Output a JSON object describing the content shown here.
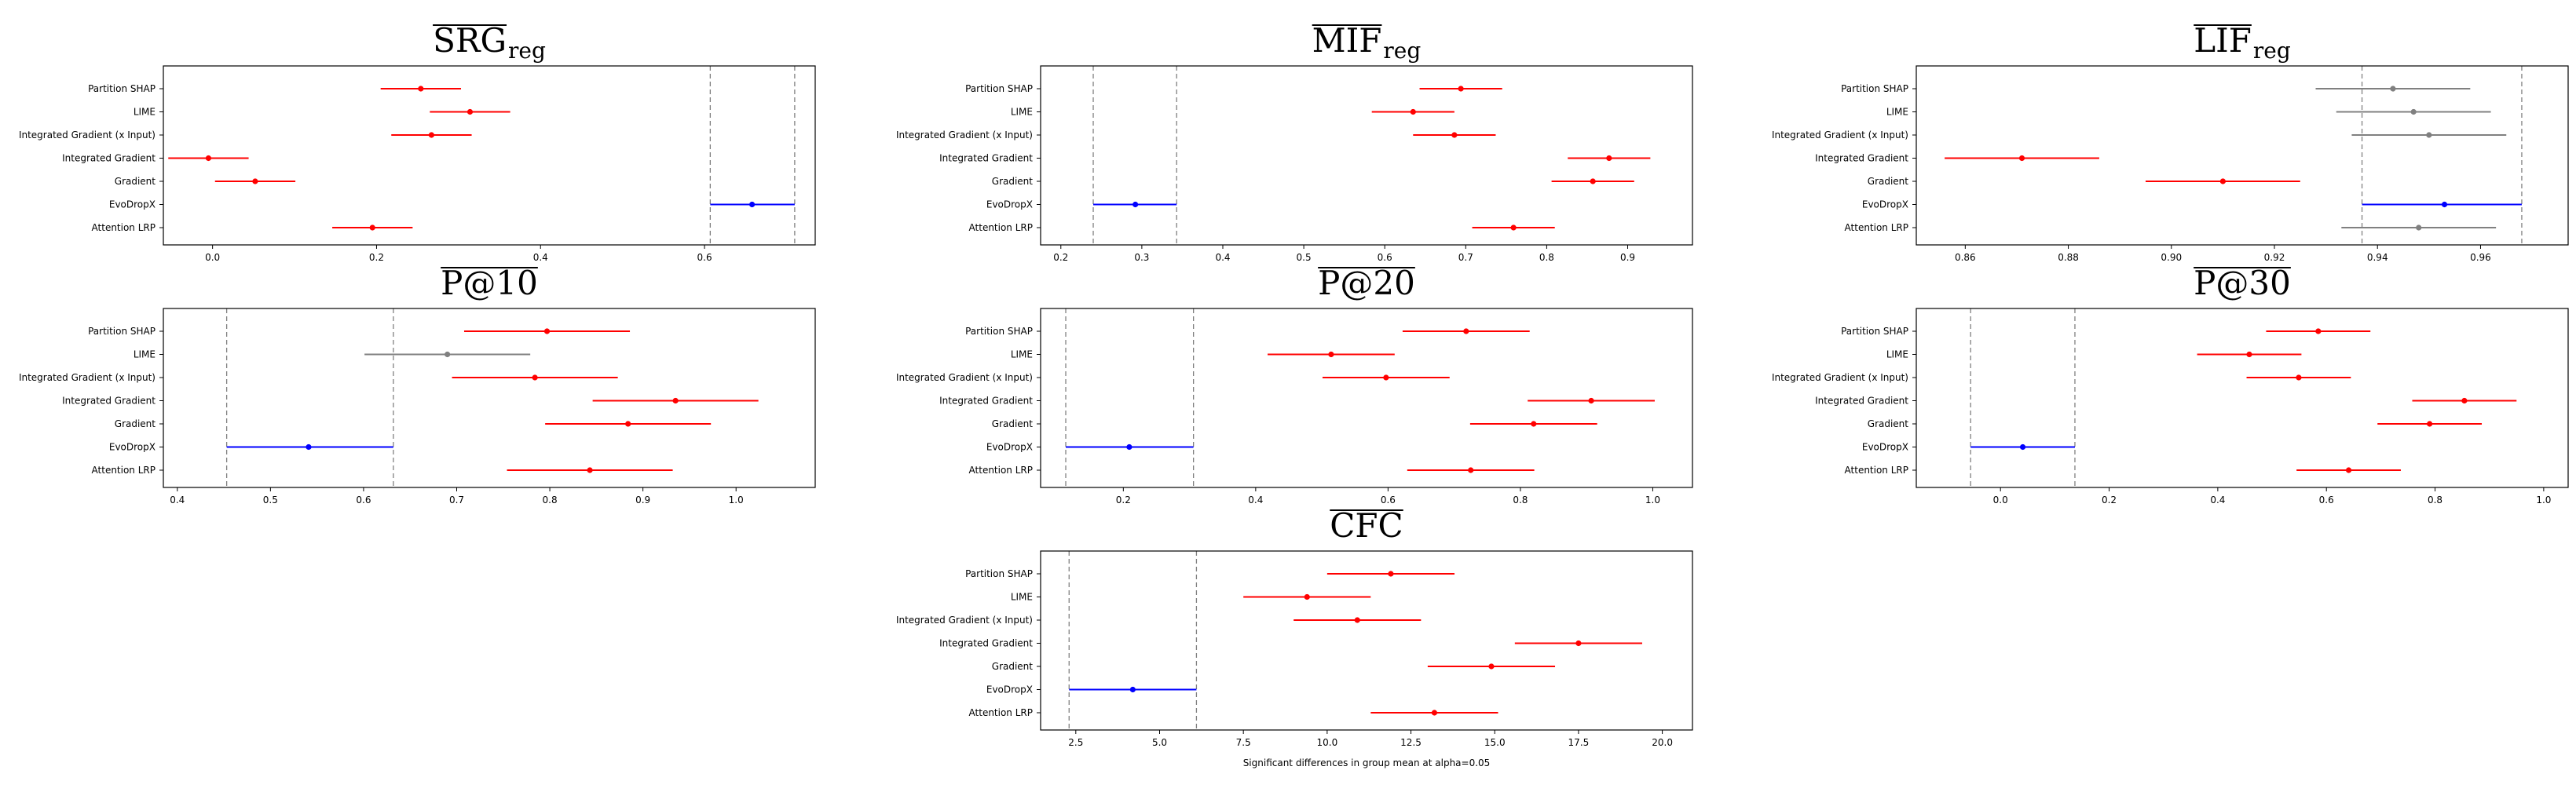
{
  "colors": {
    "highlight": "#0000ff",
    "significant": "#ff0000",
    "nonsignificant": "#808080",
    "reference_line": "#808080"
  },
  "chart_data": [
    {
      "type": "interval",
      "title": "SRG",
      "title_sub": "reg",
      "xlabel": "",
      "xlim": [
        -0.06,
        0.735
      ],
      "xticks": [
        "0.0",
        "0.2",
        "0.4",
        "0.6"
      ],
      "xtick_values": [
        0.0,
        0.2,
        0.4,
        0.6
      ],
      "reference_lines": [
        0.607,
        0.71
      ],
      "categories": [
        "Partition SHAP",
        "LIME",
        "Integrated Gradient (x Input)",
        "Integrated Gradient",
        "Gradient",
        "EvoDropX",
        "Attention LRP"
      ],
      "means": [
        0.254,
        0.314,
        0.267,
        -0.005,
        0.052,
        0.658,
        0.195
      ],
      "lower": [
        0.205,
        0.265,
        0.218,
        -0.054,
        0.003,
        0.607,
        0.146
      ],
      "upper": [
        0.303,
        0.363,
        0.316,
        0.044,
        0.101,
        0.71,
        0.244
      ],
      "colors": [
        "#ff0000",
        "#ff0000",
        "#ff0000",
        "#ff0000",
        "#ff0000",
        "#0000ff",
        "#ff0000"
      ]
    },
    {
      "type": "interval",
      "title": "MIF",
      "title_sub": "reg",
      "xlabel": "",
      "xlim": [
        0.175,
        0.98
      ],
      "xticks": [
        "0.2",
        "0.3",
        "0.4",
        "0.5",
        "0.6",
        "0.7",
        "0.8",
        "0.9"
      ],
      "xtick_values": [
        0.2,
        0.3,
        0.4,
        0.5,
        0.6,
        0.7,
        0.8,
        0.9
      ],
      "reference_lines": [
        0.24,
        0.343
      ],
      "categories": [
        "Partition SHAP",
        "LIME",
        "Integrated Gradient (x Input)",
        "Integrated Gradient",
        "Gradient",
        "EvoDropX",
        "Attention LRP"
      ],
      "means": [
        0.694,
        0.635,
        0.686,
        0.877,
        0.857,
        0.292,
        0.759
      ],
      "lower": [
        0.643,
        0.584,
        0.635,
        0.826,
        0.806,
        0.24,
        0.708
      ],
      "upper": [
        0.745,
        0.686,
        0.737,
        0.928,
        0.908,
        0.343,
        0.81
      ],
      "colors": [
        "#ff0000",
        "#ff0000",
        "#ff0000",
        "#ff0000",
        "#ff0000",
        "#0000ff",
        "#ff0000"
      ]
    },
    {
      "type": "interval",
      "title": "LIF",
      "title_sub": "reg",
      "xlabel": "",
      "xlim": [
        0.8505,
        0.977
      ],
      "xticks": [
        "0.86",
        "0.88",
        "0.90",
        "0.92",
        "0.94",
        "0.96"
      ],
      "xtick_values": [
        0.86,
        0.88,
        0.9,
        0.92,
        0.94,
        0.96
      ],
      "reference_lines": [
        0.937,
        0.968
      ],
      "categories": [
        "Partition SHAP",
        "LIME",
        "Integrated Gradient (x Input)",
        "Integrated Gradient",
        "Gradient",
        "EvoDropX",
        "Attention LRP"
      ],
      "means": [
        0.943,
        0.947,
        0.95,
        0.871,
        0.91,
        0.953,
        0.948
      ],
      "lower": [
        0.928,
        0.932,
        0.935,
        0.856,
        0.895,
        0.937,
        0.933
      ],
      "upper": [
        0.958,
        0.962,
        0.965,
        0.886,
        0.925,
        0.968,
        0.963
      ],
      "colors": [
        "#808080",
        "#808080",
        "#808080",
        "#ff0000",
        "#ff0000",
        "#0000ff",
        "#808080"
      ]
    },
    {
      "type": "interval",
      "title": "P@10",
      "title_sub": "",
      "xlabel": "",
      "xlim": [
        0.385,
        1.085
      ],
      "xticks": [
        "0.4",
        "0.5",
        "0.6",
        "0.7",
        "0.8",
        "0.9",
        "1.0"
      ],
      "xtick_values": [
        0.4,
        0.5,
        0.6,
        0.7,
        0.8,
        0.9,
        1.0
      ],
      "reference_lines": [
        0.453,
        0.632
      ],
      "categories": [
        "Partition SHAP",
        "LIME",
        "Integrated Gradient (x Input)",
        "Integrated Gradient",
        "Gradient",
        "EvoDropX",
        "Attention LRP"
      ],
      "means": [
        0.797,
        0.69,
        0.784,
        0.935,
        0.884,
        0.541,
        0.843
      ],
      "lower": [
        0.708,
        0.601,
        0.695,
        0.846,
        0.795,
        0.453,
        0.754
      ],
      "upper": [
        0.886,
        0.779,
        0.873,
        1.024,
        0.973,
        0.632,
        0.932
      ],
      "colors": [
        "#ff0000",
        "#808080",
        "#ff0000",
        "#ff0000",
        "#ff0000",
        "#0000ff",
        "#ff0000"
      ]
    },
    {
      "type": "interval",
      "title": "P@20",
      "title_sub": "",
      "xlabel": "",
      "xlim": [
        0.075,
        1.06
      ],
      "xticks": [
        "0.2",
        "0.4",
        "0.6",
        "0.8",
        "1.0"
      ],
      "xtick_values": [
        0.2,
        0.4,
        0.6,
        0.8,
        1.0
      ],
      "reference_lines": [
        0.113,
        0.306
      ],
      "categories": [
        "Partition SHAP",
        "LIME",
        "Integrated Gradient (x Input)",
        "Integrated Gradient",
        "Gradient",
        "EvoDropX",
        "Attention LRP"
      ],
      "means": [
        0.718,
        0.514,
        0.597,
        0.907,
        0.82,
        0.209,
        0.725
      ],
      "lower": [
        0.622,
        0.418,
        0.501,
        0.811,
        0.724,
        0.113,
        0.629
      ],
      "upper": [
        0.814,
        0.61,
        0.693,
        1.003,
        0.916,
        0.306,
        0.821
      ],
      "colors": [
        "#ff0000",
        "#ff0000",
        "#ff0000",
        "#ff0000",
        "#ff0000",
        "#0000ff",
        "#ff0000"
      ]
    },
    {
      "type": "interval",
      "title": "P@30",
      "title_sub": "",
      "xlabel": "",
      "xlim": [
        -0.155,
        1.045
      ],
      "xticks": [
        "0.0",
        "0.2",
        "0.4",
        "0.6",
        "0.8",
        "1.0"
      ],
      "xtick_values": [
        0.0,
        0.2,
        0.4,
        0.6,
        0.8,
        1.0
      ],
      "reference_lines": [
        -0.055,
        0.137
      ],
      "categories": [
        "Partition SHAP",
        "LIME",
        "Integrated Gradient (x Input)",
        "Integrated Gradient",
        "Gradient",
        "EvoDropX",
        "Attention LRP"
      ],
      "means": [
        0.585,
        0.458,
        0.549,
        0.854,
        0.79,
        0.041,
        0.641
      ],
      "lower": [
        0.489,
        0.362,
        0.453,
        0.758,
        0.694,
        -0.055,
        0.545
      ],
      "upper": [
        0.681,
        0.554,
        0.645,
        0.95,
        0.886,
        0.137,
        0.737
      ],
      "colors": [
        "#ff0000",
        "#ff0000",
        "#ff0000",
        "#ff0000",
        "#ff0000",
        "#0000ff",
        "#ff0000"
      ]
    },
    {
      "type": "interval",
      "title": "CFC",
      "title_sub": "",
      "xlabel": "Significant differences in group mean at alpha=0.05",
      "xlim": [
        1.45,
        20.9
      ],
      "xticks": [
        "2.5",
        "5.0",
        "7.5",
        "10.0",
        "12.5",
        "15.0",
        "17.5",
        "20.0"
      ],
      "xtick_values": [
        2.5,
        5.0,
        7.5,
        10.0,
        12.5,
        15.0,
        17.5,
        20.0
      ],
      "reference_lines": [
        2.3,
        6.1
      ],
      "categories": [
        "Partition SHAP",
        "LIME",
        "Integrated Gradient (x Input)",
        "Integrated Gradient",
        "Gradient",
        "EvoDropX",
        "Attention LRP"
      ],
      "means": [
        11.9,
        9.4,
        10.9,
        17.5,
        14.9,
        4.2,
        13.2
      ],
      "lower": [
        10.0,
        7.5,
        9.0,
        15.6,
        13.0,
        2.3,
        11.3
      ],
      "upper": [
        13.8,
        11.3,
        12.8,
        19.4,
        16.8,
        6.1,
        15.1
      ],
      "colors": [
        "#ff0000",
        "#ff0000",
        "#ff0000",
        "#ff0000",
        "#ff0000",
        "#0000ff",
        "#ff0000"
      ]
    }
  ]
}
